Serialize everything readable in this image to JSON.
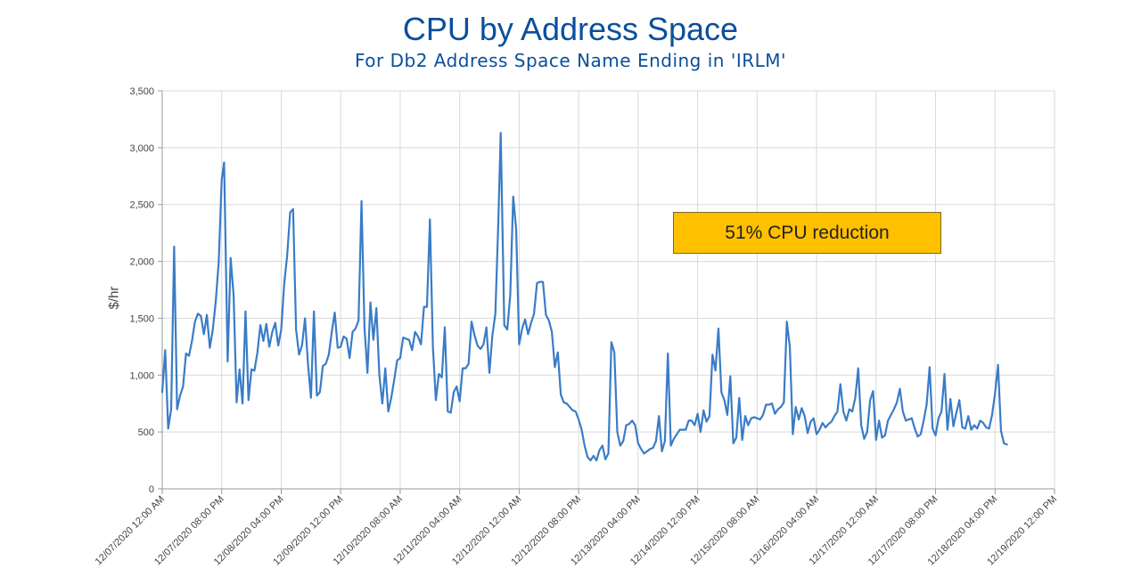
{
  "chart_data": {
    "type": "line",
    "title": "CPU by Address Space",
    "subtitle": "For Db2 Address Space Name Ending in 'IRLM'",
    "ylabel": "$/hr",
    "xlabel": "",
    "ylim": [
      0,
      3500
    ],
    "yticks": [
      0,
      500,
      1000,
      1500,
      2000,
      2500,
      3000,
      3500
    ],
    "ytick_labels": [
      "0",
      "500",
      "1,000",
      "1,500",
      "2,000",
      "2,500",
      "3,000",
      "3,500"
    ],
    "xlim": [
      "12/07/2020 12:00 AM",
      "12/19/2020 12:00 PM"
    ],
    "xtick_labels": [
      "12/07/2020 12:00 AM",
      "12/07/2020 08:00 PM",
      "12/08/2020 04:00 PM",
      "12/09/2020 12:00 PM",
      "12/10/2020 08:00 AM",
      "12/11/2020 04:00 AM",
      "12/12/2020 12:00 AM",
      "12/12/2020 08:00 PM",
      "12/13/2020 04:00 PM",
      "12/14/2020 12:00 PM",
      "12/15/2020 08:00 AM",
      "12/16/2020 04:00 AM",
      "12/17/2020 12:00 AM",
      "12/17/2020 08:00 PM",
      "12/18/2020 04:00 PM",
      "12/19/2020 12:00 PM"
    ],
    "grid": true,
    "line_color": "#3a7cc7",
    "annotation": "51% CPU reduction",
    "annotation_color": "#ffc000",
    "series": [
      {
        "values": [
          [
            0,
            850
          ],
          [
            1,
            1220
          ],
          [
            2,
            530
          ],
          [
            3,
            700
          ],
          [
            4,
            2130
          ],
          [
            5,
            700
          ],
          [
            6,
            820
          ],
          [
            7,
            900
          ],
          [
            8,
            1190
          ],
          [
            9,
            1170
          ],
          [
            10,
            1300
          ],
          [
            11,
            1470
          ],
          [
            12,
            1540
          ],
          [
            13,
            1520
          ],
          [
            14,
            1360
          ],
          [
            15,
            1530
          ],
          [
            16,
            1240
          ],
          [
            17,
            1400
          ],
          [
            18,
            1650
          ],
          [
            19,
            2000
          ],
          [
            20,
            2720
          ],
          [
            20.8,
            2870
          ],
          [
            22,
            1120
          ],
          [
            23,
            2030
          ],
          [
            24,
            1700
          ],
          [
            25,
            760
          ],
          [
            26,
            1050
          ],
          [
            27,
            750
          ],
          [
            28,
            1560
          ],
          [
            29,
            780
          ],
          [
            30,
            1050
          ],
          [
            31,
            1040
          ],
          [
            32,
            1200
          ],
          [
            33,
            1440
          ],
          [
            34,
            1300
          ],
          [
            35,
            1450
          ],
          [
            36,
            1250
          ],
          [
            37,
            1380
          ],
          [
            38,
            1460
          ],
          [
            39,
            1260
          ],
          [
            40,
            1400
          ],
          [
            41,
            1800
          ],
          [
            42,
            2050
          ],
          [
            43,
            2430
          ],
          [
            44,
            2460
          ],
          [
            45,
            1400
          ],
          [
            46,
            1180
          ],
          [
            47,
            1260
          ],
          [
            48,
            1500
          ],
          [
            49,
            1100
          ],
          [
            50,
            800
          ],
          [
            51,
            1560
          ],
          [
            52,
            820
          ],
          [
            53,
            850
          ],
          [
            54,
            1080
          ],
          [
            55,
            1100
          ],
          [
            56,
            1180
          ],
          [
            57,
            1380
          ],
          [
            58,
            1550
          ],
          [
            59,
            1240
          ],
          [
            60,
            1250
          ],
          [
            61,
            1340
          ],
          [
            62,
            1320
          ],
          [
            63,
            1150
          ],
          [
            64,
            1380
          ],
          [
            65,
            1410
          ],
          [
            66,
            1480
          ],
          [
            67,
            2530
          ],
          [
            68,
            1420
          ],
          [
            69,
            1020
          ],
          [
            70,
            1640
          ],
          [
            71,
            1310
          ],
          [
            72,
            1590
          ],
          [
            73,
            1000
          ],
          [
            74,
            750
          ],
          [
            75,
            1060
          ],
          [
            76,
            680
          ],
          [
            77,
            800
          ],
          [
            78,
            960
          ],
          [
            79,
            1130
          ],
          [
            80,
            1150
          ],
          [
            81,
            1330
          ],
          [
            82,
            1320
          ],
          [
            83,
            1310
          ],
          [
            84,
            1220
          ],
          [
            85,
            1380
          ],
          [
            86,
            1340
          ],
          [
            87,
            1270
          ],
          [
            88,
            1600
          ],
          [
            89,
            1600
          ],
          [
            90,
            2370
          ],
          [
            91,
            1250
          ],
          [
            92,
            780
          ],
          [
            93,
            1010
          ],
          [
            94,
            980
          ],
          [
            95,
            1420
          ],
          [
            96,
            680
          ],
          [
            97,
            670
          ],
          [
            98,
            850
          ],
          [
            99,
            900
          ],
          [
            100,
            770
          ],
          [
            101,
            1060
          ],
          [
            102,
            1060
          ],
          [
            103,
            1100
          ],
          [
            104,
            1470
          ],
          [
            105,
            1350
          ],
          [
            106,
            1260
          ],
          [
            107,
            1230
          ],
          [
            108,
            1270
          ],
          [
            109,
            1420
          ],
          [
            110,
            1020
          ],
          [
            111,
            1350
          ],
          [
            112,
            1540
          ],
          [
            113,
            2350
          ],
          [
            113.8,
            3130
          ],
          [
            115,
            1440
          ],
          [
            116,
            1400
          ],
          [
            117,
            1700
          ],
          [
            118,
            2570
          ],
          [
            119,
            2280
          ],
          [
            120,
            1270
          ],
          [
            121,
            1410
          ],
          [
            122,
            1490
          ],
          [
            123,
            1360
          ],
          [
            124,
            1460
          ],
          [
            125,
            1540
          ],
          [
            126,
            1810
          ],
          [
            127,
            1820
          ],
          [
            128,
            1820
          ],
          [
            129,
            1530
          ],
          [
            130,
            1480
          ],
          [
            131,
            1380
          ],
          [
            132,
            1070
          ],
          [
            133,
            1200
          ],
          [
            134,
            830
          ],
          [
            135,
            760
          ],
          [
            136,
            750
          ],
          [
            137,
            720
          ],
          [
            138,
            690
          ],
          [
            139,
            680
          ],
          [
            140,
            610
          ],
          [
            141,
            520
          ],
          [
            142,
            380
          ],
          [
            143,
            280
          ],
          [
            144,
            250
          ],
          [
            145,
            290
          ],
          [
            146,
            250
          ],
          [
            147,
            340
          ],
          [
            148,
            380
          ],
          [
            149,
            260
          ],
          [
            150,
            310
          ],
          [
            151,
            1290
          ],
          [
            152,
            1200
          ],
          [
            153,
            500
          ],
          [
            154,
            380
          ],
          [
            155,
            420
          ],
          [
            156,
            560
          ],
          [
            157,
            570
          ],
          [
            158,
            600
          ],
          [
            159,
            560
          ],
          [
            160,
            400
          ],
          [
            161,
            350
          ],
          [
            162,
            310
          ],
          [
            163,
            330
          ],
          [
            164,
            350
          ],
          [
            165,
            360
          ],
          [
            166,
            420
          ],
          [
            167,
            640
          ],
          [
            168,
            330
          ],
          [
            169,
            420
          ],
          [
            170,
            1190
          ],
          [
            171,
            380
          ],
          [
            172,
            440
          ],
          [
            173,
            480
          ],
          [
            174,
            520
          ],
          [
            175,
            520
          ],
          [
            176,
            520
          ],
          [
            177,
            600
          ],
          [
            178,
            600
          ],
          [
            179,
            560
          ],
          [
            180,
            660
          ],
          [
            181,
            500
          ],
          [
            182,
            690
          ],
          [
            183,
            590
          ],
          [
            184,
            640
          ],
          [
            185,
            1180
          ],
          [
            186,
            1040
          ],
          [
            187,
            1410
          ],
          [
            188,
            850
          ],
          [
            189,
            780
          ],
          [
            190,
            650
          ],
          [
            191,
            990
          ],
          [
            192,
            400
          ],
          [
            193,
            450
          ],
          [
            194,
            800
          ],
          [
            195,
            430
          ],
          [
            196,
            640
          ],
          [
            197,
            560
          ],
          [
            198,
            620
          ],
          [
            199,
            630
          ],
          [
            200,
            620
          ],
          [
            201,
            610
          ],
          [
            202,
            650
          ],
          [
            203,
            740
          ],
          [
            204,
            740
          ],
          [
            205,
            750
          ],
          [
            206,
            660
          ],
          [
            207,
            700
          ],
          [
            208,
            720
          ],
          [
            209,
            760
          ],
          [
            210,
            1470
          ],
          [
            211,
            1250
          ],
          [
            212,
            480
          ],
          [
            213,
            720
          ],
          [
            214,
            610
          ],
          [
            215,
            710
          ],
          [
            216,
            640
          ],
          [
            217,
            490
          ],
          [
            218,
            590
          ],
          [
            219,
            620
          ],
          [
            220,
            480
          ],
          [
            221,
            520
          ],
          [
            222,
            580
          ],
          [
            223,
            540
          ],
          [
            224,
            570
          ],
          [
            225,
            590
          ],
          [
            226,
            640
          ],
          [
            227,
            680
          ],
          [
            228,
            920
          ],
          [
            229,
            680
          ],
          [
            230,
            600
          ],
          [
            231,
            700
          ],
          [
            232,
            680
          ],
          [
            233,
            800
          ],
          [
            234,
            1060
          ],
          [
            235,
            560
          ],
          [
            236,
            440
          ],
          [
            237,
            500
          ],
          [
            238,
            780
          ],
          [
            239,
            860
          ],
          [
            240,
            430
          ],
          [
            241,
            600
          ],
          [
            242,
            450
          ],
          [
            243,
            470
          ],
          [
            244,
            600
          ],
          [
            245,
            650
          ],
          [
            246,
            700
          ],
          [
            247,
            760
          ],
          [
            248,
            880
          ],
          [
            249,
            680
          ],
          [
            250,
            600
          ],
          [
            251,
            610
          ],
          [
            252,
            620
          ],
          [
            253,
            530
          ],
          [
            254,
            460
          ],
          [
            255,
            480
          ],
          [
            256,
            600
          ],
          [
            257,
            740
          ],
          [
            258,
            1070
          ],
          [
            259,
            530
          ],
          [
            260,
            470
          ],
          [
            261,
            620
          ],
          [
            262,
            680
          ],
          [
            263,
            1010
          ],
          [
            264,
            520
          ],
          [
            265,
            790
          ],
          [
            266,
            550
          ],
          [
            267,
            670
          ],
          [
            268,
            780
          ],
          [
            269,
            540
          ],
          [
            270,
            530
          ],
          [
            271,
            640
          ],
          [
            272,
            520
          ],
          [
            273,
            560
          ],
          [
            274,
            530
          ],
          [
            275,
            600
          ],
          [
            276,
            580
          ],
          [
            277,
            540
          ],
          [
            278,
            530
          ],
          [
            279,
            650
          ],
          [
            280,
            840
          ],
          [
            281,
            1090
          ],
          [
            282,
            510
          ],
          [
            283,
            400
          ],
          [
            284,
            390
          ]
        ]
      }
    ]
  }
}
